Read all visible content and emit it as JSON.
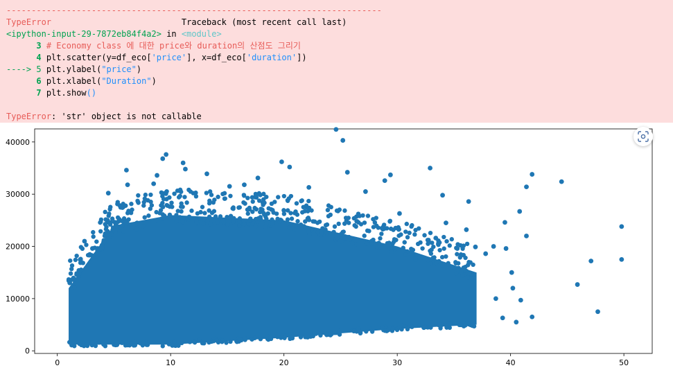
{
  "error_output": {
    "separator": "---------------------------------------------------------------------------",
    "line1": {
      "exception": "TypeError",
      "traceback_label": "Traceback (most recent call last)"
    },
    "line2": {
      "input_ref": "<ipython-input-29-7872eb84f4a2>",
      "in_word": " in ",
      "module": "<module>"
    },
    "code": {
      "l3_num": "3",
      "l3_comment": "# Economy class 에 대한 price와 duration의 산점도 그리기",
      "l4_num": "4",
      "l4_a": "plt",
      "l4_b": ".scatter(y=df_eco[",
      "l4_c": "'price'",
      "l4_d": "], x=df_eco[",
      "l4_e": "'duration'",
      "l4_f": "])",
      "arrow": "----> ",
      "l5_num": "5",
      "l5_a": "plt",
      "l5_b": ".ylabel(",
      "l5_c": "\"price\"",
      "l5_d": ")",
      "l6_num": "6",
      "l6_a": "plt",
      "l6_b": ".xlabel(",
      "l6_c": "\"Duration\"",
      "l6_d": ")",
      "l7_num": "7",
      "l7_a": "plt",
      "l7_b": ".show",
      "l7_c": "()"
    },
    "final": {
      "exception": "TypeError",
      "message": ": 'str' object is not callable"
    }
  },
  "icons": {
    "screenshot": "screenshot-icon"
  },
  "chart_data": {
    "type": "scatter",
    "title": "",
    "xlabel": "",
    "ylabel": "",
    "xlim": [
      -2,
      52.5
    ],
    "ylim": [
      -500,
      42500
    ],
    "xticks": [
      0,
      10,
      20,
      30,
      40,
      50
    ],
    "yticks": [
      0,
      10000,
      20000,
      30000,
      40000
    ],
    "color": "#1f77b4",
    "dense_region": {
      "description_x_range": [
        0.9,
        37
      ],
      "lower_edge_at_x": [
        [
          1,
          1200
        ],
        [
          10,
          1200
        ],
        [
          20,
          2500
        ],
        [
          30,
          4200
        ],
        [
          37,
          5000
        ]
      ],
      "upper_edge_at_x": [
        [
          1,
          12000
        ],
        [
          3,
          18000
        ],
        [
          5,
          24000
        ],
        [
          10,
          26000
        ],
        [
          20,
          25000
        ],
        [
          30,
          20000
        ],
        [
          37,
          15000
        ]
      ]
    },
    "outliers": [
      [
        24.6,
        42400
      ],
      [
        25.2,
        40300
      ],
      [
        9.6,
        37600
      ],
      [
        9.3,
        36800
      ],
      [
        11.1,
        36000
      ],
      [
        19.8,
        36200
      ],
      [
        20.5,
        35200
      ],
      [
        32.9,
        35000
      ],
      [
        11.3,
        34800
      ],
      [
        6.1,
        34600
      ],
      [
        25.6,
        34200
      ],
      [
        13.2,
        33900
      ],
      [
        8.8,
        33600
      ],
      [
        41.9,
        33800
      ],
      [
        44.5,
        32400
      ],
      [
        29.4,
        33700
      ],
      [
        34,
        29800
      ],
      [
        41.4,
        31400
      ],
      [
        28.9,
        32600
      ],
      [
        8.5,
        32000
      ],
      [
        17.7,
        33100
      ],
      [
        4.5,
        30200
      ],
      [
        6.2,
        31800
      ],
      [
        36.3,
        28600
      ],
      [
        40.8,
        26700
      ],
      [
        34.3,
        24500
      ],
      [
        36.1,
        23200
      ],
      [
        41.4,
        22000
      ],
      [
        49.8,
        23800
      ],
      [
        39.5,
        24600
      ],
      [
        47.1,
        17200
      ],
      [
        49.8,
        17500
      ],
      [
        45.9,
        12700
      ],
      [
        47.7,
        7500
      ],
      [
        41.9,
        6500
      ],
      [
        40.5,
        5500
      ],
      [
        39.3,
        6300
      ],
      [
        40.9,
        9700
      ],
      [
        40.2,
        12000
      ],
      [
        38.7,
        10000
      ],
      [
        40.1,
        15000
      ],
      [
        38.5,
        20000
      ],
      [
        39.6,
        19600
      ],
      [
        37.8,
        18600
      ],
      [
        36.9,
        19900
      ],
      [
        35.3,
        19600
      ],
      [
        33.4,
        21600
      ],
      [
        30.2,
        26300
      ],
      [
        27.2,
        30500
      ],
      [
        22.2,
        31300
      ],
      [
        15.2,
        31500
      ],
      [
        16.5,
        31800
      ],
      [
        2.4,
        21000
      ],
      [
        3.1,
        19600
      ],
      [
        1.1,
        13000
      ],
      [
        2.1,
        15500
      ]
    ]
  }
}
